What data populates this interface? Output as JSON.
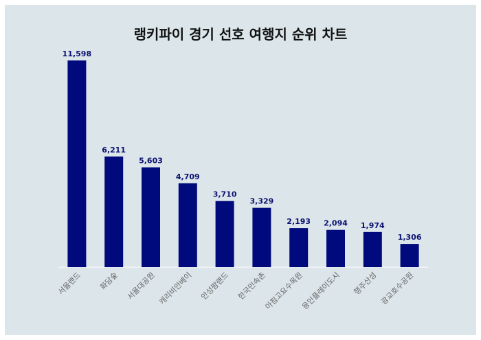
{
  "chart_data": {
    "type": "bar",
    "title": "랭키파이 경기 선호 여행지 순위 차트",
    "categories": [
      "서울랜드",
      "화담숲",
      "서울대공원",
      "캐리비안베이",
      "안성팜랜드",
      "한국민속촌",
      "아침고요수목원",
      "용인플레이도시",
      "행주산성",
      "광교호수공원"
    ],
    "values": [
      11598,
      6211,
      5603,
      4709,
      3710,
      3329,
      2193,
      2094,
      1974,
      1306
    ],
    "value_labels": [
      "11,598",
      "6,211",
      "5,603",
      "4,709",
      "3,710",
      "3,329",
      "2,193",
      "2,094",
      "1,974",
      "1,306"
    ],
    "xlabel": "",
    "ylabel": "",
    "ylim": [
      0,
      11598
    ],
    "grid": false,
    "legend": "none",
    "bar_color": "#000a7d",
    "background_color": "#dce6ea"
  }
}
